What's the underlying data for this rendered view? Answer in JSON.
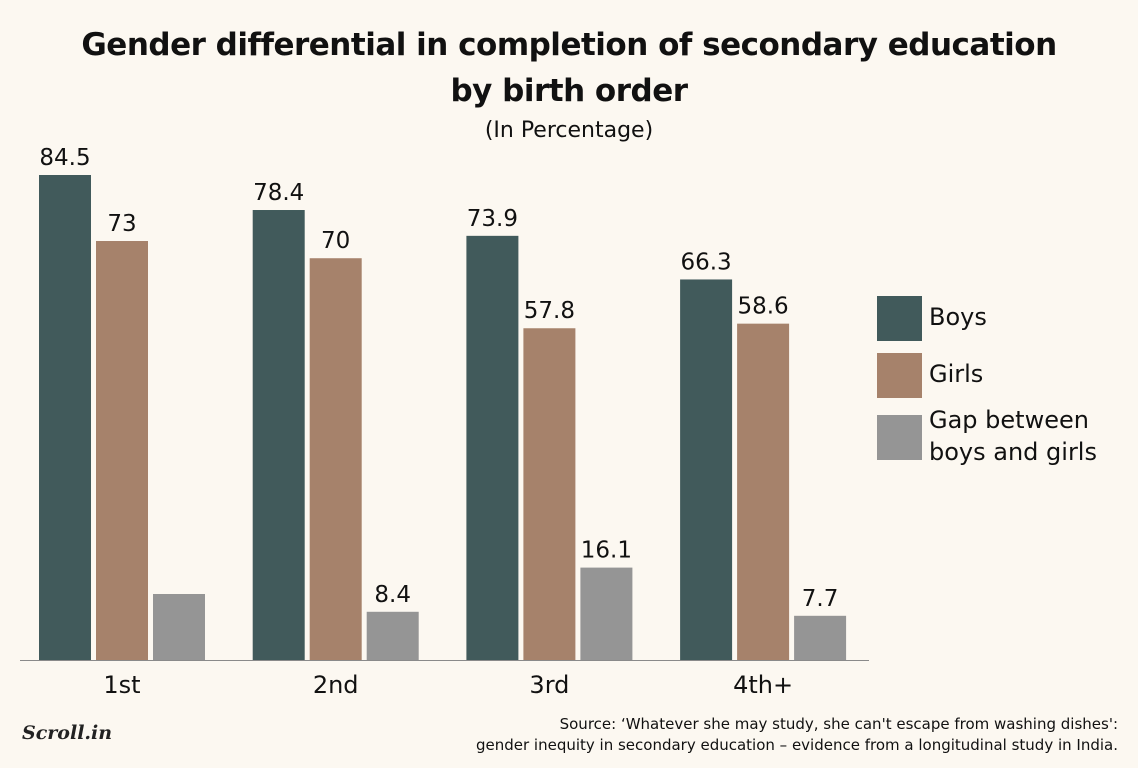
{
  "chart_data": {
    "type": "bar",
    "title": "Gender differential in completion of secondary education by birth order",
    "title_lines": [
      "Gender differential in completion of secondary education",
      "by birth order"
    ],
    "subtitle": "(In Percentage)",
    "categories": [
      "1st",
      "2nd",
      "3rd",
      "4th+"
    ],
    "series": [
      {
        "name": "Boys",
        "color": "#415a5b",
        "values": [
          84.5,
          78.4,
          73.9,
          66.3
        ],
        "labels": [
          "84.5",
          "78.4",
          "73.9",
          "66.3"
        ]
      },
      {
        "name": "Girls",
        "color": "#a6826b",
        "values": [
          73,
          70,
          57.8,
          58.6
        ],
        "labels": [
          "73",
          "70",
          "57.8",
          "58.6"
        ]
      },
      {
        "name": "Gap between boys and girls",
        "color": "#959595",
        "values": [
          11.5,
          8.4,
          16.1,
          7.7
        ],
        "labels": [
          "",
          "8.4",
          "16.1",
          "7.7"
        ]
      }
    ],
    "ylim": [
      0,
      84.5
    ],
    "grid": false,
    "legend_position": "right"
  },
  "legend": {
    "items": [
      {
        "label": "Boys",
        "color": "#415a5b"
      },
      {
        "label": "Girls",
        "color": "#a6826b"
      },
      {
        "label": "Gap between boys and girls",
        "color": "#959595"
      }
    ]
  },
  "footer": {
    "logo": "Scroll.in",
    "source_line1": "Source: ‘Whatever she may study, she can't escape from washing dishes':",
    "source_line2": "gender inequity in secondary education – evidence from a longitudinal study in India."
  }
}
